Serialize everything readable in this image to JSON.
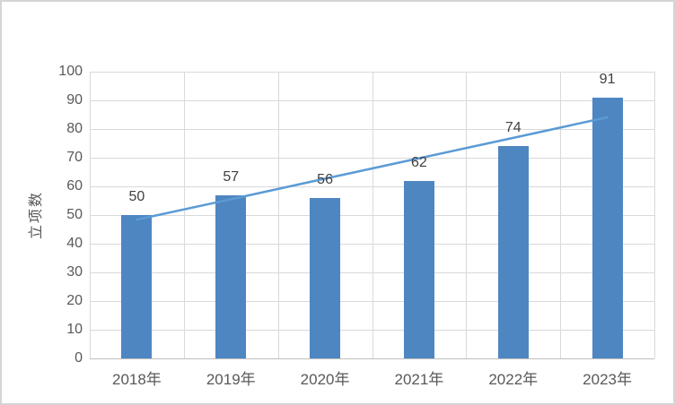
{
  "chart_data": {
    "type": "bar",
    "title": "",
    "categories": [
      "2018年",
      "2019年",
      "2020年",
      "2021年",
      "2022年",
      "2023年"
    ],
    "series": [
      {
        "name": "立项数",
        "type": "bar",
        "values": [
          50,
          57,
          56,
          62,
          74,
          91
        ],
        "data_labels": [
          "50",
          "57",
          "56",
          "62",
          "74",
          "91"
        ],
        "color": "#4E86C1"
      },
      {
        "name": "linear-trendline",
        "type": "line",
        "values": [
          48.4,
          55.5,
          62.7,
          69.8,
          76.9,
          84.1
        ],
        "color": "#5B9BD5"
      }
    ],
    "xlabel": "",
    "ylabel": "立项数",
    "ylim": [
      0,
      100
    ],
    "y_ticks": [
      0,
      10,
      20,
      30,
      40,
      50,
      60,
      70,
      80,
      90,
      100
    ],
    "grid": "horizontal-and-vertical",
    "legend_position": "none"
  },
  "frame": {
    "background": "#FFFFFF",
    "border_color": "#D5D5D5"
  },
  "colors": {
    "gridline": "#D9D9D9",
    "axis_line": "#BFBFBF",
    "tick_text": "#595959",
    "data_label_text": "#404040",
    "bar_fill": "#4E86C1",
    "trend_line": "#5B9BD5"
  }
}
